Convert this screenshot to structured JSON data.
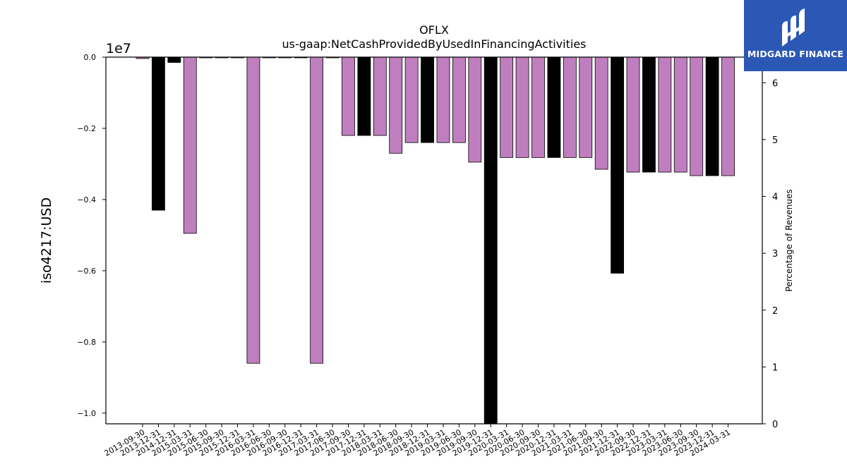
{
  "chart_data": {
    "type": "bar",
    "title": "OFLX",
    "subtitle": "us-gaap:NetCashProvidedByUsedInFinancingActivities",
    "ylabel": "iso4217:USD",
    "y2label": "Percentage of Revenues",
    "scale_label": "1e7",
    "ylim": [
      -10300000,
      0
    ],
    "y2lim": [
      0,
      6.45
    ],
    "yticks": [
      {
        "value": 0,
        "label": "0.0"
      },
      {
        "value": -2000000,
        "label": "−0.2"
      },
      {
        "value": -4000000,
        "label": "−0.4"
      },
      {
        "value": -6000000,
        "label": "−0.6"
      },
      {
        "value": -8000000,
        "label": "−0.8"
      },
      {
        "value": -10000000,
        "label": "−1.0"
      }
    ],
    "y2ticks": [
      {
        "value": 0,
        "label": "0"
      },
      {
        "value": 1,
        "label": "1"
      },
      {
        "value": 2,
        "label": "2"
      },
      {
        "value": 3,
        "label": "3"
      },
      {
        "value": 4,
        "label": "4"
      },
      {
        "value": 5,
        "label": "5"
      },
      {
        "value": 6,
        "label": "6"
      }
    ],
    "categories": [
      "2013-09-30",
      "2013-12-31",
      "2014-12-31",
      "2015-03-31",
      "2015-06-30",
      "2015-09-30",
      "2015-12-31",
      "2016-03-31",
      "2016-06-30",
      "2016-09-30",
      "2016-12-31",
      "2017-03-31",
      "2017-06-30",
      "2017-09-30",
      "2017-12-31",
      "2018-03-31",
      "2018-06-30",
      "2018-09-30",
      "2018-12-31",
      "2019-03-31",
      "2019-06-30",
      "2019-09-30",
      "2019-12-31",
      "2020-03-31",
      "2020-06-30",
      "2020-09-30",
      "2020-12-31",
      "2021-03-31",
      "2021-06-30",
      "2021-09-30",
      "2021-12-31",
      "2022-09-30",
      "2022-12-31",
      "2023-03-31",
      "2023-06-30",
      "2023-09-30",
      "2023-12-31",
      "2024-03-31"
    ],
    "values": [
      -40000,
      -4300000,
      -150000,
      -4950000,
      -20000,
      -20000,
      -20000,
      -8600000,
      -20000,
      -20000,
      -20000,
      -8600000,
      -20000,
      -2200000,
      -2200000,
      -2200000,
      -2700000,
      -2400000,
      -2400000,
      -2400000,
      -2400000,
      -2950000,
      -10300000,
      -2820000,
      -2820000,
      -2820000,
      -2820000,
      -2820000,
      -2820000,
      -3150000,
      -6070000,
      -3230000,
      -3230000,
      -3230000,
      -3230000,
      -3330000,
      -3330000,
      -3330000
    ],
    "annual": [
      false,
      true,
      true,
      false,
      false,
      false,
      false,
      false,
      false,
      false,
      true,
      false,
      false,
      false,
      true,
      false,
      false,
      false,
      true,
      false,
      false,
      false,
      true,
      false,
      false,
      false,
      true,
      false,
      false,
      false,
      true,
      false,
      true,
      false,
      false,
      false,
      true,
      false
    ],
    "colors": {
      "quarterly": "#bf7fbf",
      "annual": "#000000",
      "edge": "#000000"
    },
    "grid": false,
    "legend": "none"
  },
  "logo": {
    "text": "MIDGARD FINANCE",
    "background": "#2b58b5"
  }
}
